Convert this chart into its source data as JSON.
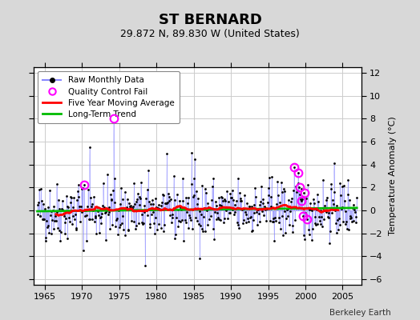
{
  "title": "ST BERNARD",
  "subtitle": "29.872 N, 89.830 W (United States)",
  "ylabel": "Temperature Anomaly (°C)",
  "xlim": [
    1963.5,
    2007.5
  ],
  "ylim": [
    -6.5,
    12.5
  ],
  "yticks": [
    -6,
    -4,
    -2,
    0,
    2,
    4,
    6,
    8,
    10,
    12
  ],
  "xticks": [
    1965,
    1970,
    1975,
    1980,
    1985,
    1990,
    1995,
    2000,
    2005
  ],
  "figure_bg_color": "#d8d8d8",
  "plot_bg_color": "#ffffff",
  "grid_color": "#cccccc",
  "raw_line_color": "#8888ff",
  "raw_dot_color": "#000000",
  "qc_fail_color": "#ff00ff",
  "moving_avg_color": "#ff0000",
  "trend_color": "#00bb00",
  "watermark": "Berkeley Earth",
  "legend_labels": [
    "Raw Monthly Data",
    "Quality Control Fail",
    "Five Year Moving Average",
    "Long-Term Trend"
  ],
  "seed": 42
}
